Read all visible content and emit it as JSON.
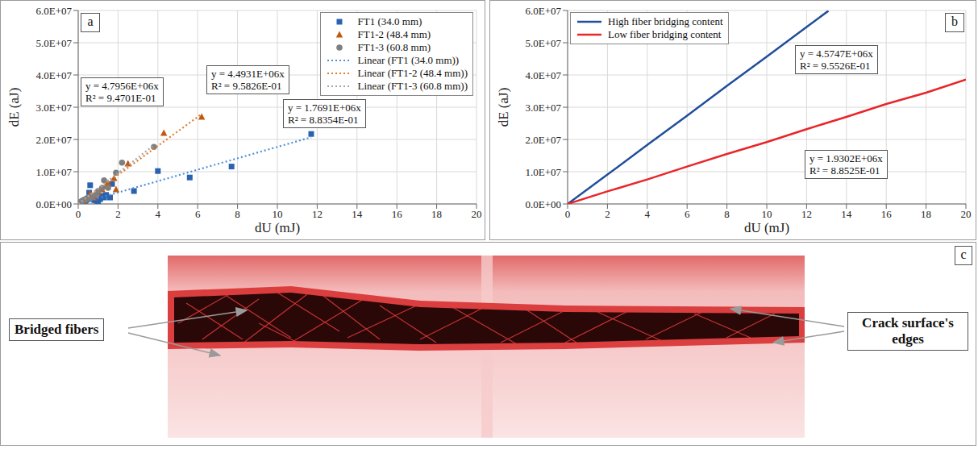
{
  "chart_data": [
    {
      "type": "scatter",
      "panel_label": "a",
      "x_label": "dU (mJ)",
      "y_label": "dE (aJ)",
      "xlim": [
        0,
        20
      ],
      "xticks": [
        0,
        2,
        4,
        6,
        8,
        10,
        12,
        14,
        16,
        18,
        20
      ],
      "ylim": [
        0,
        60000000
      ],
      "yticks": [
        {
          "value": 0,
          "label": "0.0E+00"
        },
        {
          "value": 10000000,
          "label": "1.0E+07"
        },
        {
          "value": 20000000,
          "label": "2.0E+07"
        },
        {
          "value": 30000000,
          "label": "3.0E+07"
        },
        {
          "value": 40000000,
          "label": "4.0E+07"
        },
        {
          "value": 50000000,
          "label": "5.0E+07"
        },
        {
          "value": 60000000,
          "label": "6.0E+07"
        }
      ],
      "grid": true,
      "legend": "upper right",
      "series": [
        {
          "name": "FT1 (34.0 mm)",
          "color": "#2a62b0",
          "marker": "square",
          "x": [
            0.05,
            0.1,
            0.15,
            0.2,
            0.25,
            0.3,
            0.35,
            0.4,
            0.5,
            0.55,
            0.6,
            0.7,
            0.8,
            0.9,
            1.0,
            1.1,
            1.2,
            1.3,
            1.4,
            1.6,
            1.7,
            2.8,
            4.0,
            5.6,
            7.7,
            11.7
          ],
          "values": [
            200000,
            400000,
            300000,
            600000,
            500000,
            800000,
            1000000,
            1200000,
            1500000,
            3500000,
            5800000,
            1800000,
            1200000,
            1000000,
            800000,
            1500000,
            2500000,
            2000000,
            2800000,
            2000000,
            6200000,
            4000000,
            10200000,
            8200000,
            11600000,
            21700000
          ]
        },
        {
          "name": "FT1-2 (48.4 mm)",
          "color": "#c0580f",
          "marker": "triangle",
          "x": [
            0.1,
            0.2,
            0.3,
            0.4,
            0.5,
            0.6,
            0.7,
            0.8,
            1.0,
            1.2,
            1.4,
            1.5,
            1.8,
            1.9,
            2.5,
            4.3,
            6.2
          ],
          "values": [
            300000,
            600000,
            1000000,
            1500000,
            2000000,
            3200000,
            2500000,
            2000000,
            3500000,
            4500000,
            5500000,
            6500000,
            8000000,
            4500000,
            12500000,
            22000000,
            27000000
          ]
        },
        {
          "name": "FT1-3 (60.8 mm)",
          "color": "#7f7f7f",
          "marker": "circle",
          "x": [
            0.05,
            0.1,
            0.2,
            0.3,
            0.4,
            0.5,
            0.6,
            0.7,
            0.9,
            1.0,
            1.2,
            1.3,
            1.5,
            1.9,
            2.2,
            3.8
          ],
          "values": [
            300000,
            600000,
            1000000,
            1300000,
            1600000,
            2000000,
            1800000,
            2500000,
            3000000,
            4000000,
            5000000,
            7300000,
            5000000,
            9700000,
            12800000,
            17700000
          ]
        },
        {
          "name": "Linear (FT1 (34.0 mm))",
          "type": "line",
          "line_style": "dotted",
          "color": "#4a90d9",
          "x": [
            0,
            11.7
          ],
          "values": [
            0,
            20700000
          ]
        },
        {
          "name": "Linear (FT1-2 (48.4 mm))",
          "type": "line",
          "line_style": "dotted",
          "color": "#e07b2a",
          "x": [
            0,
            6.2
          ],
          "values": [
            0,
            27900000
          ]
        },
        {
          "name": "Linear (FT1-3 (60.8 mm))",
          "type": "line",
          "line_style": "dotted",
          "color": "#a6a6a6",
          "x": [
            0,
            3.8
          ],
          "values": [
            0,
            18200000
          ]
        }
      ],
      "annotations": [
        {
          "lines": [
            "y = 4.7956E+06x",
            "R² = 9.4701E-01"
          ]
        },
        {
          "lines": [
            "y = 4.4931E+06x",
            "R² = 9.5826E-01"
          ]
        },
        {
          "lines": [
            "y = 1.7691E+06x",
            "R² = 8.8354E-01"
          ]
        }
      ]
    },
    {
      "type": "line",
      "panel_label": "b",
      "x_label": "dU (mJ)",
      "y_label": "dE (aJ)",
      "xlim": [
        0,
        20
      ],
      "xticks": [
        0,
        2,
        4,
        6,
        8,
        10,
        12,
        14,
        16,
        18,
        20
      ],
      "ylim": [
        0,
        60000000
      ],
      "yticks": [
        {
          "value": 0,
          "label": "0.0E+00"
        },
        {
          "value": 10000000,
          "label": "1.0E+07"
        },
        {
          "value": 20000000,
          "label": "2.0E+07"
        },
        {
          "value": 30000000,
          "label": "3.0E+07"
        },
        {
          "value": 40000000,
          "label": "4.0E+07"
        },
        {
          "value": 50000000,
          "label": "5.0E+07"
        },
        {
          "value": 60000000,
          "label": "6.0E+07"
        }
      ],
      "grid": true,
      "legend": "upper left",
      "series": [
        {
          "name": "High fiber bridging content",
          "color": "#1f4e9a",
          "line_style": "solid",
          "x": [
            0,
            2,
            4,
            6,
            8,
            10,
            12,
            13.1
          ],
          "values": [
            0,
            9100000,
            18300000,
            27400000,
            36600000,
            45700000,
            54900000,
            59900000
          ]
        },
        {
          "name": "Low fiber bridging content",
          "color": "#e8262a",
          "line_style": "solid",
          "x": [
            0,
            2,
            4,
            6,
            8,
            10,
            12,
            14,
            16,
            18,
            20
          ],
          "values": [
            0,
            3900000,
            7600000,
            11600000,
            15500000,
            19200000,
            23200000,
            27000000,
            31000000,
            34500000,
            38600000
          ]
        }
      ],
      "annotations": [
        {
          "lines": [
            "y = 4.5747E+06x",
            "R² = 9.5526E-01"
          ]
        },
        {
          "lines": [
            "y = 1.9302E+06x",
            "R² = 8.8525E-01"
          ]
        }
      ]
    }
  ],
  "image_panel": {
    "panel_label": "c",
    "annotations": [
      {
        "text": "Bridged fibers"
      },
      {
        "text": "Crack surface's edges"
      }
    ]
  }
}
